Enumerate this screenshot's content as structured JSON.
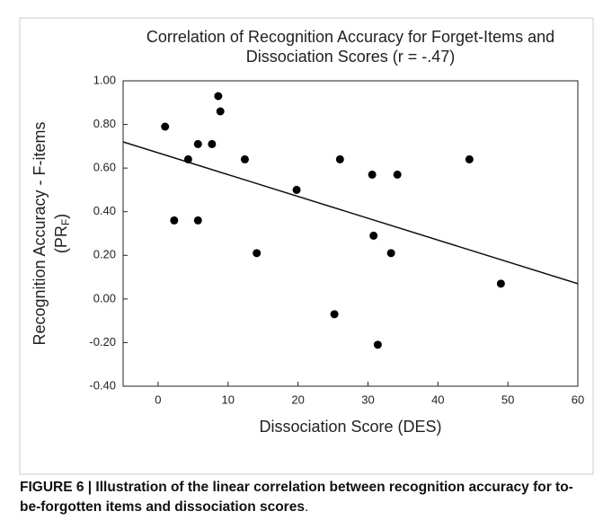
{
  "chart_data": {
    "type": "scatter",
    "title": [
      "Correlation of Recognition Accuracy for Forget-Items and",
      "Dissociation Scores (r = -.47)"
    ],
    "xlabel": "Dissociation Score (DES)",
    "ylabel": {
      "main": "Recognition Accuracy - F-items",
      "open": "(PR",
      "sub": "F",
      "close": ")"
    },
    "x": [
      1,
      2.3,
      4.3,
      5.7,
      5.7,
      7.7,
      8.6,
      8.9,
      12.4,
      14.1,
      19.8,
      25.2,
      26.0,
      30.6,
      30.8,
      31.4,
      33.3,
      34.2,
      44.5,
      49
    ],
    "values": [
      0.79,
      0.36,
      0.64,
      0.71,
      0.36,
      0.71,
      0.93,
      0.86,
      0.64,
      0.21,
      0.5,
      -0.07,
      0.64,
      0.57,
      0.29,
      -0.21,
      0.21,
      0.57,
      0.64,
      0.07
    ],
    "color": "#000000",
    "trendline": {
      "x": [
        -5,
        60
      ],
      "y": [
        0.72,
        0.07
      ]
    },
    "xlim": [
      -5,
      60
    ],
    "xticks": [
      0,
      10,
      20,
      30,
      40,
      50,
      60
    ],
    "ylim": [
      -0.4,
      1.0
    ],
    "yticks": [
      {
        "value": -0.4,
        "label": "-0.40"
      },
      {
        "value": -0.2,
        "label": "-0.20"
      },
      {
        "value": 0,
        "label": "0.00"
      },
      {
        "value": 0.2,
        "label": "0.20"
      },
      {
        "value": 0.4,
        "label": "0.40"
      },
      {
        "value": 0.6,
        "label": "0.60"
      },
      {
        "value": 0.8,
        "label": "0.80"
      },
      {
        "value": 1.0,
        "label": "1.00"
      }
    ],
    "caption": {
      "bold": "FIGURE 6 | Illustration of the linear correlation between recognition accuracy for to-be-forgotten items and dissociation scores",
      "end": "."
    }
  }
}
